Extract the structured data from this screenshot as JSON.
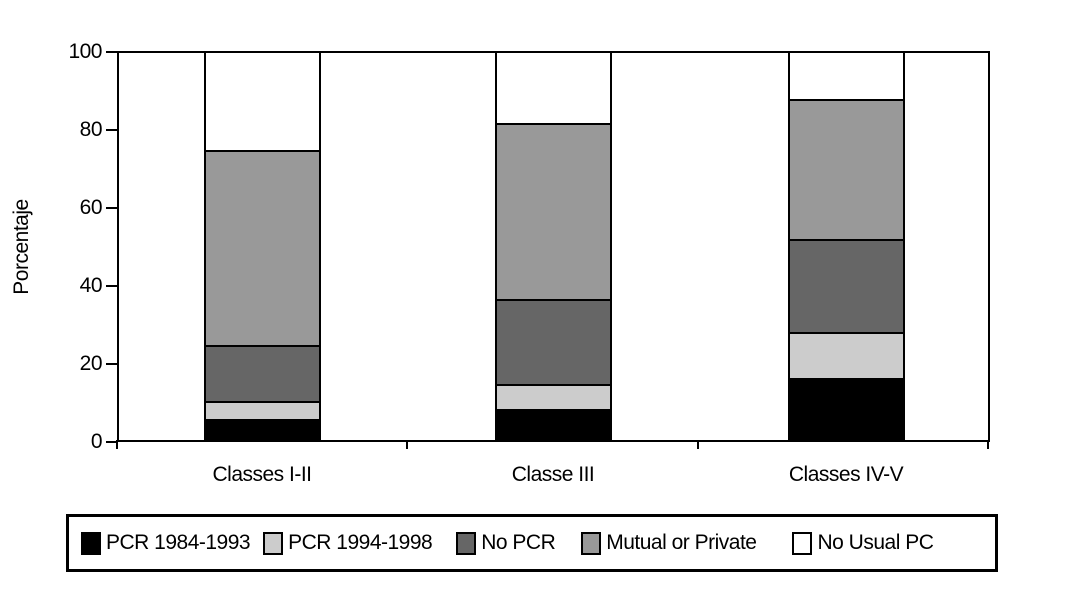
{
  "chart_data": {
    "type": "bar",
    "stacked": true,
    "orientation": "vertical",
    "title": "",
    "xlabel": "",
    "ylabel": "Porcentaje",
    "ylim": [
      0,
      100
    ],
    "yticks": [
      0,
      20,
      40,
      60,
      80,
      100
    ],
    "grid": false,
    "legend_position": "bottom-boxed",
    "categories": [
      "Classes I-II",
      "Classe III",
      "Classes IV-V"
    ],
    "series": [
      {
        "name": "PCR 1984-1993",
        "color": "#000000",
        "values": [
          5.5,
          8.0,
          16.0
        ]
      },
      {
        "name": "PCR 1994-1998",
        "color": "#cccccc",
        "values": [
          4.5,
          6.5,
          12.0
        ]
      },
      {
        "name": "No PCR",
        "color": "#666666",
        "values": [
          14.5,
          22.0,
          24.0
        ]
      },
      {
        "name": "Mutual or Private",
        "color": "#999999",
        "values": [
          50.5,
          45.5,
          36.0
        ]
      },
      {
        "name": "No Usual PC",
        "color": "#ffffff",
        "values": [
          25.0,
          18.0,
          12.0
        ]
      }
    ],
    "cumulative_tops": {
      "Classes I-II": [
        5.5,
        10,
        24.5,
        75,
        100
      ],
      "Classe III": [
        8,
        14.5,
        36.5,
        82,
        100
      ],
      "Classes IV-V": [
        16,
        28,
        52,
        88,
        100
      ]
    }
  },
  "colors": {
    "axis": "#000000",
    "background": "#ffffff",
    "text": "#000000"
  },
  "layout_labels": {
    "y_axis_title": "Porcentaje"
  }
}
